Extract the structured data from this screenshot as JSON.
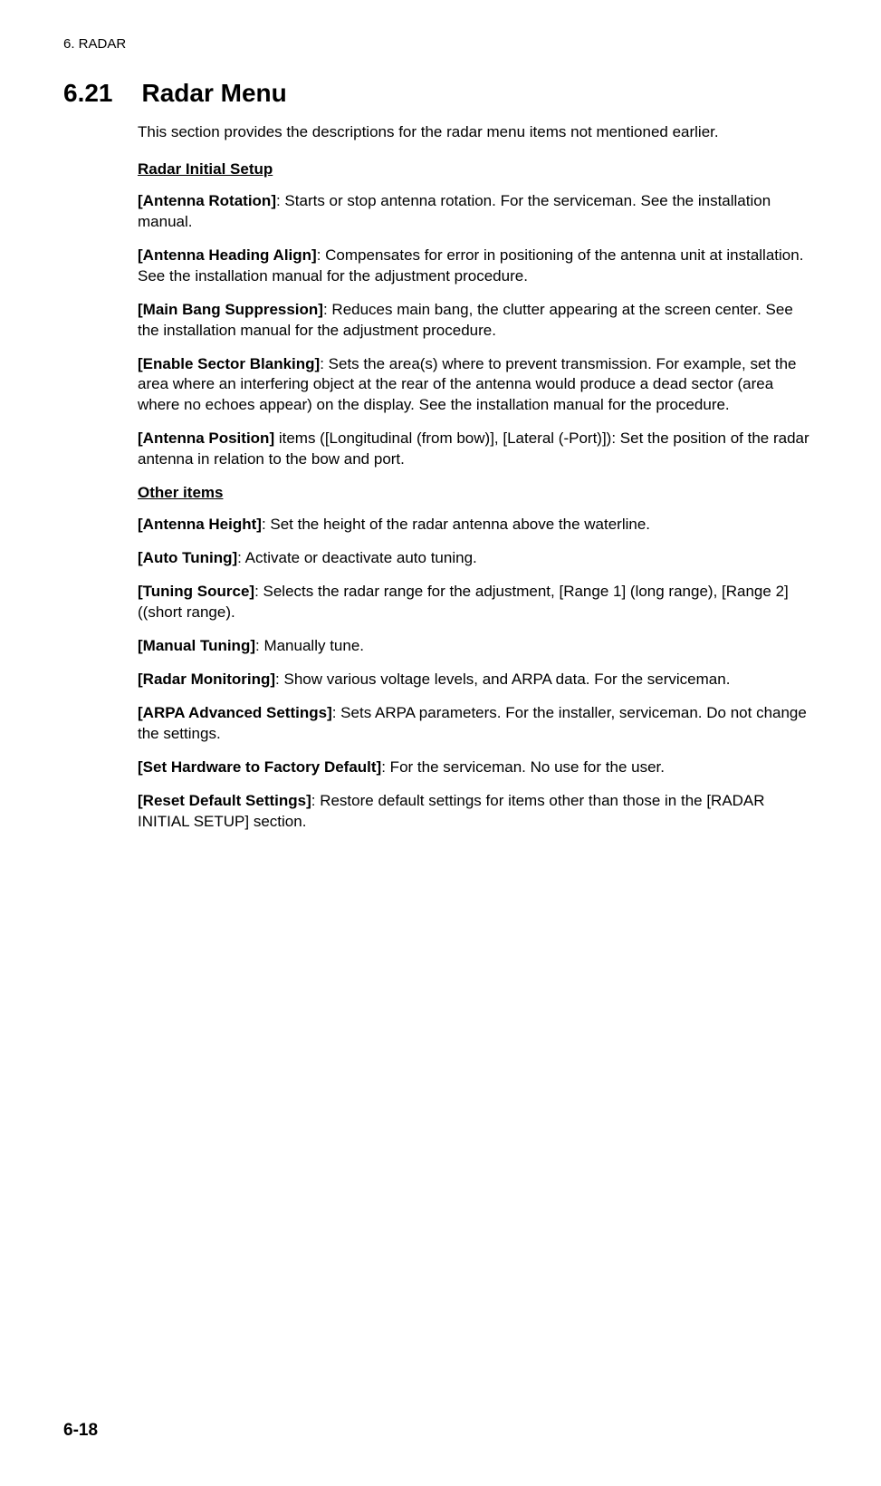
{
  "header": "6.  RADAR",
  "section": {
    "number": "6.21",
    "title": "Radar Menu"
  },
  "intro": "This section provides the descriptions for the radar menu items not mentioned earlier.",
  "subsection1_title": "Radar Initial Setup",
  "items1": [
    {
      "label": "[Antenna Rotation]",
      "text": ": Starts or stop antenna rotation. For the serviceman. See the installation manual."
    },
    {
      "label": "[Antenna Heading Align]",
      "text": ": Compensates for error in positioning of the antenna unit at installation. See the installation manual for the adjustment procedure."
    },
    {
      "label": "[Main Bang Suppression]",
      "text": ": Reduces main bang, the clutter appearing at the screen center. See the installation manual for the adjustment procedure."
    },
    {
      "label": "[Enable Sector Blanking]",
      "text": ": Sets the area(s) where to prevent transmission. For example, set the area where an interfering object at the rear of the antenna would produce a dead sector (area where no echoes appear) on the display. See the installation manual for the procedure."
    },
    {
      "label": "[Antenna Position]",
      "text": " items ([Longitudinal (from bow)], [Lateral (-Port)]): Set the position of the radar antenna in relation to the bow and port."
    }
  ],
  "subsection2_title": "Other items",
  "items2": [
    {
      "label": "[Antenna Height]",
      "text": ": Set the height of the radar antenna above the waterline."
    },
    {
      "label": "[Auto Tuning]",
      "text": ": Activate or deactivate auto tuning."
    },
    {
      "label": "[Tuning Source]",
      "text": ": Selects the radar range for the adjustment, [Range 1] (long range), [Range 2] ((short range)."
    },
    {
      "label": "[Manual Tuning]",
      "text": ": Manually tune."
    },
    {
      "label": "[Radar Monitoring]",
      "text": ": Show various voltage levels, and ARPA data. For the serviceman."
    },
    {
      "label": "[ARPA Advanced Settings]",
      "text": ": Sets ARPA parameters. For the installer, serviceman. Do not change the settings."
    },
    {
      "label": "[Set Hardware to Factory Default]",
      "text": ": For the serviceman. No use for the user."
    },
    {
      "label": "[Reset Default Settings]",
      "text": ": Restore default settings for items other than those in the [RADAR INITIAL SETUP] section."
    }
  ],
  "page_number": "6-18"
}
